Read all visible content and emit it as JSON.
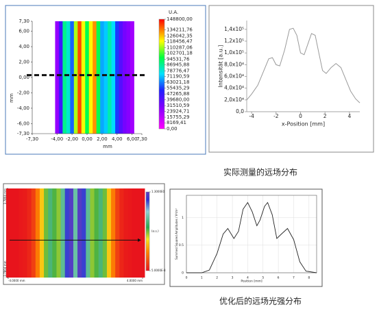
{
  "captions": [
    "实际测量的远场分布",
    "优化后的远场光强分布"
  ],
  "chart_data": [
    {
      "type": "heatmap",
      "x": [
        -4,
        -3.5,
        -3,
        -2.5,
        -2,
        -1.5,
        -1,
        -0.5,
        0,
        0.5,
        1,
        1.5,
        2,
        2.5,
        3,
        3.5,
        4,
        4.5,
        5,
        5.5,
        6
      ],
      "values": [
        25000,
        45000,
        88000,
        80000,
        60000,
        112000,
        140000,
        118000,
        95000,
        120000,
        132000,
        95000,
        68000,
        72000,
        84000,
        74000,
        55000,
        40000,
        32000,
        28000,
        22000
      ],
      "xlim": [
        -7.3,
        7.3
      ],
      "ylim": [
        -7.3,
        7.3
      ],
      "xticks": [
        {
          "value": -7.3,
          "label": "-7,30"
        },
        {
          "value": -4,
          "label": "-4,00"
        },
        {
          "value": -2,
          "label": "-2,00"
        },
        {
          "value": 0,
          "label": "0,00"
        },
        {
          "value": 2,
          "label": "2,00"
        },
        {
          "value": 4,
          "label": "4,00"
        },
        {
          "value": 6,
          "label": "6,00"
        },
        {
          "value": 7.3,
          "label": "7,30"
        }
      ],
      "yticks": [
        {
          "value": 7.3,
          "label": "7,30"
        },
        {
          "value": 6,
          "label": "6,00"
        },
        {
          "value": 4,
          "label": "4,00"
        },
        {
          "value": 2,
          "label": "2,00"
        },
        {
          "value": 0,
          "label": "0,00"
        },
        {
          "value": -2,
          "label": "-2,00"
        },
        {
          "value": -4,
          "label": "-4,00"
        },
        {
          "value": -6,
          "label": "-6,00"
        },
        {
          "value": -7.3,
          "label": "-7,30"
        }
      ],
      "xlabel": "mm",
      "ylabel": "mm",
      "colorbar_title": "U.A.",
      "clim": [
        0,
        148800
      ],
      "colorbar_ticks": [
        {
          "value": 148800,
          "label": "148800,00"
        },
        {
          "value": 134211.76,
          "label": "134211,76"
        },
        {
          "value": 126042.35,
          "label": "126042,35"
        },
        {
          "value": 118456.47,
          "label": "118456,47"
        },
        {
          "value": 110287.06,
          "label": "110287,06"
        },
        {
          "value": 102701.18,
          "label": "102701,18"
        },
        {
          "value": 94531.76,
          "label": "94531,76"
        },
        {
          "value": 86945.88,
          "label": "86945,88"
        },
        {
          "value": 78776.47,
          "label": "78776,47"
        },
        {
          "value": 71190.59,
          "label": "71190,59"
        },
        {
          "value": 63021.18,
          "label": "63021,18"
        },
        {
          "value": 55435.29,
          "label": "55435,29"
        },
        {
          "value": 47265.88,
          "label": "47265,88"
        },
        {
          "value": 39680,
          "label": "39680,00"
        },
        {
          "value": 31510.59,
          "label": "31510,59"
        },
        {
          "value": 23924.71,
          "label": "23924,71"
        },
        {
          "value": 15755.29,
          "label": "15755,29"
        },
        {
          "value": 8169.41,
          "label": "8169,41"
        },
        {
          "value": 0,
          "label": "0,00"
        }
      ],
      "colormap": [
        {
          "at": 0,
          "color": "#ff00ff"
        },
        {
          "at": 0.2,
          "color": "#8000ff"
        },
        {
          "at": 0.35,
          "color": "#2020ff"
        },
        {
          "at": 0.5,
          "color": "#00e0ff"
        },
        {
          "at": 0.65,
          "color": "#00ff40"
        },
        {
          "at": 0.8,
          "color": "#ffff00"
        },
        {
          "at": 1,
          "color": "#ff0000"
        }
      ],
      "cut_line": 0.3
    },
    {
      "type": "line",
      "x": [
        -4.4,
        -4,
        -3.5,
        -3,
        -2.6,
        -2.3,
        -2,
        -1.7,
        -1.3,
        -0.9,
        -0.6,
        -0.3,
        0,
        0.3,
        0.6,
        0.9,
        1.2,
        1.5,
        1.8,
        2.1,
        2.5,
        2.9,
        3.3,
        3.7,
        4.1,
        4.5,
        4.85
      ],
      "values": [
        20000,
        30000,
        45000,
        70000,
        90000,
        92000,
        80000,
        78000,
        105000,
        140000,
        142000,
        130000,
        100000,
        97000,
        115000,
        133000,
        130000,
        100000,
        70000,
        65000,
        75000,
        82000,
        75000,
        55000,
        35000,
        22000,
        15000
      ],
      "color": "#999999",
      "xlim": [
        -4.4,
        4.85
      ],
      "ylim": [
        0,
        155000
      ],
      "xticks": [
        -4,
        -2,
        0,
        2,
        4
      ],
      "yticks": [
        {
          "value": 0,
          "label": "0,0"
        },
        {
          "value": 20000,
          "label": "2,0x10⁴"
        },
        {
          "value": 40000,
          "label": "4,0x10⁴"
        },
        {
          "value": 60000,
          "label": "6,0x10⁴"
        },
        {
          "value": 80000,
          "label": "8,0x10⁴"
        },
        {
          "value": 100000,
          "label": "1,0x10⁵"
        },
        {
          "value": 120000,
          "label": "1,2x10⁵"
        },
        {
          "value": 140000,
          "label": "1,4x10⁵"
        }
      ],
      "xlabel": "x-Position [mm]",
      "ylabel": "Intensität [a.u.]",
      "grid": false
    },
    {
      "type": "heatmap",
      "x": [
        -4,
        -3.75,
        -3.5,
        -3.25,
        -3,
        -2.75,
        -2.5,
        -2.25,
        -2,
        -1.75,
        -1.5,
        -1.25,
        -1,
        -0.75,
        -0.5,
        -0.25,
        0,
        0.25,
        0.5,
        0.75,
        1,
        1.25,
        1.5,
        1.75,
        2,
        2.25,
        2.5,
        2.75,
        3,
        3.25,
        3.5,
        3.75,
        4
      ],
      "values": [
        0,
        0,
        0,
        0.01,
        0.02,
        0.05,
        0.12,
        0.28,
        0.45,
        0.65,
        0.8,
        0.68,
        0.62,
        0.85,
        1.15,
        1.27,
        0.88,
        1.27,
        1.15,
        0.85,
        0.62,
        0.68,
        0.8,
        0.65,
        0.45,
        0.28,
        0.12,
        0.05,
        0.02,
        0.01,
        0,
        0,
        0
      ],
      "xlim": [
        -4,
        4
      ],
      "ylim": [
        -3.7804,
        3.7804
      ],
      "xticks": [
        {
          "value": -4,
          "label": "-4.0000 mm"
        },
        {
          "value": 4,
          "label": "4.0000 mm"
        }
      ],
      "yticks": [
        {
          "value": 3.7804,
          "label": "3.7804 mm"
        },
        {
          "value": -3.7804,
          "label": "-3.7804 mm"
        }
      ],
      "colorbar_title": "(a.u.)",
      "clim": [
        0,
        1.3
      ],
      "colorbar_ticks": [
        {
          "value": 1.3,
          "label": "1.3000E0"
        },
        {
          "value": 5e-08,
          "label": "5.0000E-8"
        }
      ],
      "colormap": [
        {
          "at": 0,
          "color": "#e8141c"
        },
        {
          "at": 0.25,
          "color": "#ff8c00"
        },
        {
          "at": 0.4,
          "color": "#f6e81e"
        },
        {
          "at": 0.55,
          "color": "#2aa84a"
        },
        {
          "at": 0.75,
          "color": "#8fd0d8"
        },
        {
          "at": 0.9,
          "color": "#3030d0"
        },
        {
          "at": 1,
          "color": "#6040c0"
        }
      ],
      "cut_line": -0.6
    },
    {
      "type": "line",
      "x": [
        0,
        1,
        1.5,
        2,
        2.4,
        2.7,
        3.1,
        3.4,
        3.7,
        4,
        4.3,
        4.6,
        4.8,
        5.1,
        5.3,
        5.6,
        5.9,
        6.2,
        6.6,
        7,
        7.4,
        7.8,
        8.5
      ],
      "values": [
        0,
        0,
        0.05,
        0.35,
        0.7,
        0.8,
        0.62,
        0.75,
        1.15,
        1.27,
        1.1,
        0.85,
        0.95,
        1.2,
        1.27,
        1.05,
        0.62,
        0.7,
        0.8,
        0.6,
        0.2,
        0.03,
        0
      ],
      "color": "#222222",
      "xlim": [
        0,
        8.5
      ],
      "ylim": [
        0,
        1.4
      ],
      "xticks": [
        0,
        1,
        2,
        3,
        4,
        5,
        6,
        7,
        8
      ],
      "yticks": [
        0,
        0.5,
        1
      ],
      "xlabel": "Position [mm]",
      "ylabel": "Summed Squared Amplitudes / V²/m²",
      "grid": true
    }
  ]
}
